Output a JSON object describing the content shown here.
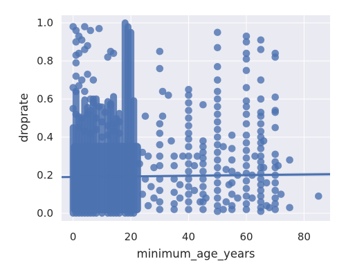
{
  "chart_data": {
    "type": "scatter",
    "title": "",
    "xlabel": "minimum_age_years",
    "ylabel": "droprate",
    "xlim": [
      -4,
      89
    ],
    "ylim": [
      -0.04,
      1.04
    ],
    "xticks": [
      0,
      20,
      40,
      60,
      80
    ],
    "xtick_labels": [
      "0",
      "20",
      "40",
      "60",
      "80"
    ],
    "yticks": [
      0.0,
      0.2,
      0.4,
      0.6,
      0.8,
      1.0
    ],
    "ytick_labels": [
      "0.0",
      "0.2",
      "0.4",
      "0.6",
      "0.8",
      "1.0"
    ],
    "grid": true,
    "background": "#EAEAF2",
    "point_color": "#4C72B0",
    "regression": {
      "x": [
        -4,
        89
      ],
      "y": [
        0.19,
        0.205
      ],
      "band_low": [
        0.185,
        0.195
      ],
      "band_high": [
        0.195,
        0.215
      ]
    },
    "points": [
      [
        0,
        0.98
      ],
      [
        1,
        0.96
      ],
      [
        2,
        0.93
      ],
      [
        4,
        0.98
      ],
      [
        6,
        0.96
      ],
      [
        9,
        0.97
      ],
      [
        1,
        0.9
      ],
      [
        3,
        0.91
      ],
      [
        5,
        0.88
      ],
      [
        1,
        0.83
      ],
      [
        2,
        0.84
      ],
      [
        4,
        0.86
      ],
      [
        1,
        0.79
      ],
      [
        12,
        0.82
      ],
      [
        13,
        0.85
      ],
      [
        14,
        0.84
      ],
      [
        1,
        0.72
      ],
      [
        3,
        0.7
      ],
      [
        5,
        0.73
      ],
      [
        7,
        0.7
      ],
      [
        0,
        0.66
      ],
      [
        1,
        0.64
      ],
      [
        2,
        0.67
      ],
      [
        4,
        0.64
      ],
      [
        6,
        0.6
      ],
      [
        7,
        0.58
      ],
      [
        9,
        0.56
      ],
      [
        11,
        0.53
      ],
      [
        13,
        0.57
      ],
      [
        0,
        0.55
      ],
      [
        1,
        0.52
      ],
      [
        3,
        0.5
      ],
      [
        5,
        0.52
      ],
      [
        6,
        0.54
      ],
      [
        8,
        0.5
      ],
      [
        10,
        0.48
      ],
      [
        12,
        0.46
      ],
      [
        14,
        0.47
      ],
      [
        16,
        0.48
      ],
      [
        2,
        0.45
      ],
      [
        4,
        0.43
      ],
      [
        6,
        0.42
      ],
      [
        8,
        0.44
      ],
      [
        10,
        0.4
      ],
      [
        12,
        0.41
      ],
      [
        14,
        0.43
      ],
      [
        16,
        0.42
      ],
      [
        30,
        0.85
      ],
      [
        30,
        0.76
      ],
      [
        31,
        0.64
      ],
      [
        33,
        0.62
      ],
      [
        31,
        0.51
      ],
      [
        30,
        0.47
      ],
      [
        30,
        0.42
      ],
      [
        30,
        0.36
      ],
      [
        30,
        0.3
      ],
      [
        30,
        0.25
      ],
      [
        30,
        0.18
      ],
      [
        30,
        0.12
      ],
      [
        30,
        0.06
      ],
      [
        30,
        0.02
      ],
      [
        25,
        0.51
      ],
      [
        24,
        0.32
      ],
      [
        23,
        0.26
      ],
      [
        25,
        0.18
      ],
      [
        24,
        0.1
      ],
      [
        26,
        0.04
      ],
      [
        28,
        0.24
      ],
      [
        27,
        0.14
      ],
      [
        26,
        0.3
      ],
      [
        28,
        0.08
      ],
      [
        34,
        0.38
      ],
      [
        35,
        0.3
      ],
      [
        35,
        0.25
      ],
      [
        35,
        0.18
      ],
      [
        35,
        0.11
      ],
      [
        35,
        0.05
      ],
      [
        35,
        0.02
      ],
      [
        37,
        0.15
      ],
      [
        37,
        0.08
      ],
      [
        38,
        0.3
      ],
      [
        40,
        0.65
      ],
      [
        40,
        0.62
      ],
      [
        40,
        0.58
      ],
      [
        40,
        0.54
      ],
      [
        40,
        0.5
      ],
      [
        40,
        0.46
      ],
      [
        40,
        0.42
      ],
      [
        40,
        0.39
      ],
      [
        40,
        0.35
      ],
      [
        40,
        0.3
      ],
      [
        40,
        0.26
      ],
      [
        40,
        0.22
      ],
      [
        40,
        0.18
      ],
      [
        40,
        0.14
      ],
      [
        40,
        0.1
      ],
      [
        40,
        0.06
      ],
      [
        40,
        0.02
      ],
      [
        42,
        0.25
      ],
      [
        42,
        0.12
      ],
      [
        44,
        0.06
      ],
      [
        43,
        0.3
      ],
      [
        45,
        0.57
      ],
      [
        45,
        0.38
      ],
      [
        45,
        0.35
      ],
      [
        45,
        0.32
      ],
      [
        45,
        0.29
      ],
      [
        45,
        0.26
      ],
      [
        45,
        0.22
      ],
      [
        45,
        0.18
      ],
      [
        45,
        0.14
      ],
      [
        45,
        0.1
      ],
      [
        45,
        0.06
      ],
      [
        45,
        0.02
      ],
      [
        46,
        0.08
      ],
      [
        50,
        0.95
      ],
      [
        50,
        0.87
      ],
      [
        50,
        0.77
      ],
      [
        50,
        0.7
      ],
      [
        50,
        0.64
      ],
      [
        50,
        0.6
      ],
      [
        50,
        0.56
      ],
      [
        50,
        0.52
      ],
      [
        50,
        0.48
      ],
      [
        50,
        0.44
      ],
      [
        50,
        0.4
      ],
      [
        50,
        0.36
      ],
      [
        50,
        0.32
      ],
      [
        50,
        0.28
      ],
      [
        50,
        0.24
      ],
      [
        50,
        0.2
      ],
      [
        50,
        0.16
      ],
      [
        50,
        0.12
      ],
      [
        50,
        0.08
      ],
      [
        50,
        0.04
      ],
      [
        50,
        0.01
      ],
      [
        52,
        0.35
      ],
      [
        53,
        0.23
      ],
      [
        54,
        0.15
      ],
      [
        53,
        0.06
      ],
      [
        52,
        0.02
      ],
      [
        55,
        0.41
      ],
      [
        55,
        0.34
      ],
      [
        55,
        0.28
      ],
      [
        55,
        0.22
      ],
      [
        55,
        0.16
      ],
      [
        55,
        0.1
      ],
      [
        55,
        0.04
      ],
      [
        55,
        0.02
      ],
      [
        57,
        0.2
      ],
      [
        57,
        0.08
      ],
      [
        60,
        0.93
      ],
      [
        60,
        0.9
      ],
      [
        60,
        0.84
      ],
      [
        60,
        0.81
      ],
      [
        60,
        0.75
      ],
      [
        60,
        0.66
      ],
      [
        60,
        0.59
      ],
      [
        60,
        0.56
      ],
      [
        60,
        0.52
      ],
      [
        60,
        0.47
      ],
      [
        60,
        0.41
      ],
      [
        60,
        0.37
      ],
      [
        60,
        0.33
      ],
      [
        60,
        0.29
      ],
      [
        60,
        0.25
      ],
      [
        60,
        0.21
      ],
      [
        60,
        0.17
      ],
      [
        60,
        0.13
      ],
      [
        60,
        0.09
      ],
      [
        60,
        0.05
      ],
      [
        60,
        0.02
      ],
      [
        62,
        0.08
      ],
      [
        62,
        0.2
      ],
      [
        63,
        0.3
      ],
      [
        65,
        0.91
      ],
      [
        65,
        0.86
      ],
      [
        65,
        0.7
      ],
      [
        65,
        0.6
      ],
      [
        65,
        0.53
      ],
      [
        65,
        0.51
      ],
      [
        65,
        0.47
      ],
      [
        65,
        0.43
      ],
      [
        65,
        0.4
      ],
      [
        65,
        0.37
      ],
      [
        65,
        0.34
      ],
      [
        65,
        0.3
      ],
      [
        65,
        0.27
      ],
      [
        65,
        0.24
      ],
      [
        65,
        0.21
      ],
      [
        65,
        0.18
      ],
      [
        65,
        0.15
      ],
      [
        65,
        0.12
      ],
      [
        65,
        0.09
      ],
      [
        65,
        0.06
      ],
      [
        65,
        0.03
      ],
      [
        65,
        0.01
      ],
      [
        66,
        0.38
      ],
      [
        66,
        0.24
      ],
      [
        67,
        0.16
      ],
      [
        67,
        0.04
      ],
      [
        68,
        0.03
      ],
      [
        70,
        0.84
      ],
      [
        70,
        0.82
      ],
      [
        70,
        0.61
      ],
      [
        70,
        0.54
      ],
      [
        70,
        0.53
      ],
      [
        70,
        0.45
      ],
      [
        70,
        0.31
      ],
      [
        70,
        0.27
      ],
      [
        70,
        0.24
      ],
      [
        70,
        0.2
      ],
      [
        70,
        0.16
      ],
      [
        70,
        0.12
      ],
      [
        70,
        0.08
      ],
      [
        70,
        0.05
      ],
      [
        70,
        0.02
      ],
      [
        71,
        0.25
      ],
      [
        72,
        0.1
      ],
      [
        75,
        0.28
      ],
      [
        75,
        0.03
      ],
      [
        85,
        0.09
      ]
    ],
    "dense_columns": [
      {
        "x": [
          -0.8,
          23.5
        ],
        "y_range": [
          0.0,
          0.37
        ],
        "note": "dense band"
      }
    ]
  }
}
